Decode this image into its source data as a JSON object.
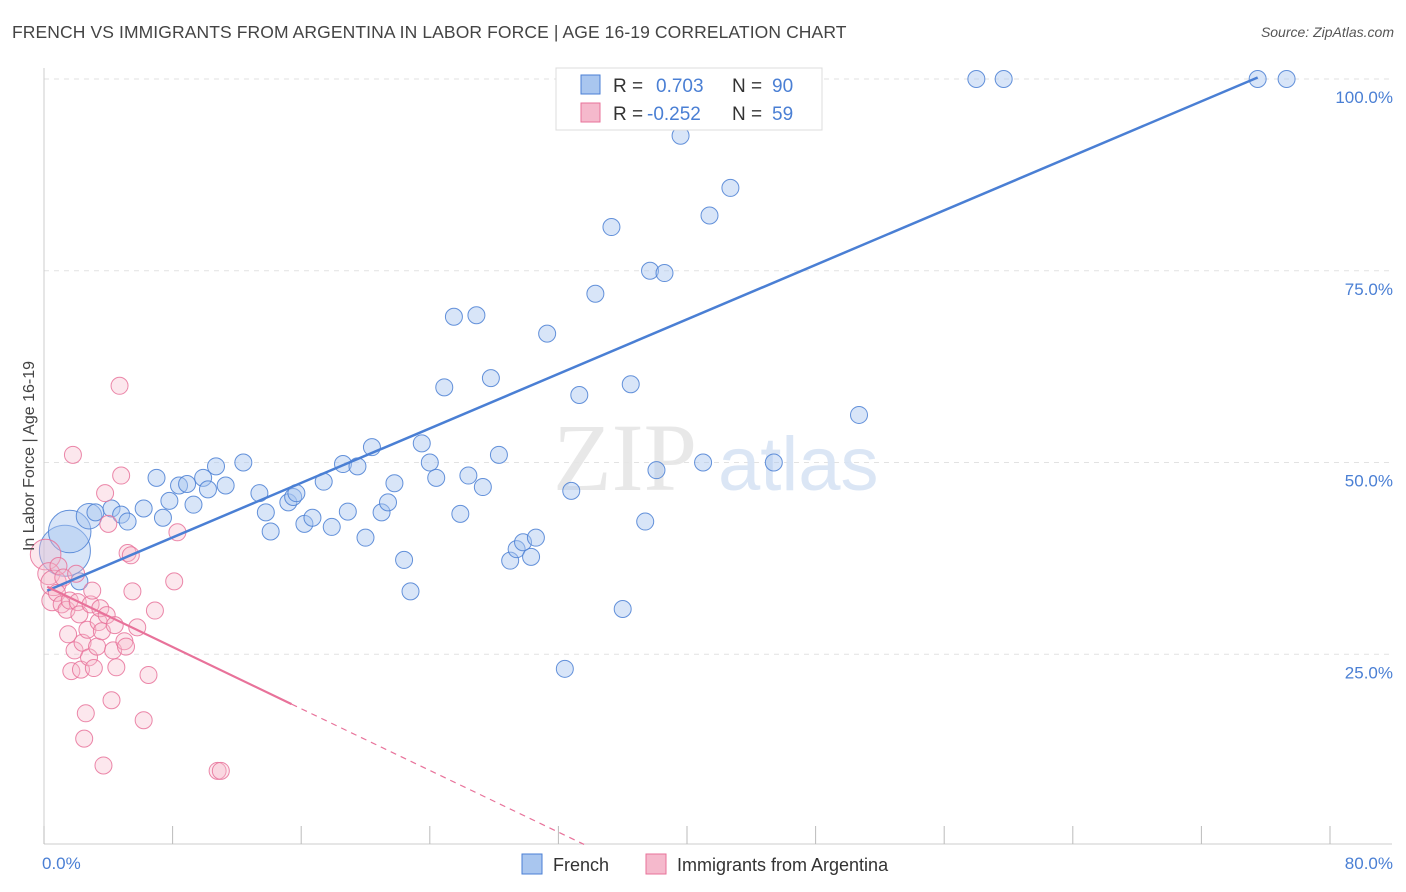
{
  "title": "FRENCH VS IMMIGRANTS FROM ARGENTINA IN LABOR FORCE | AGE 16-19 CORRELATION CHART",
  "source": "Source: ZipAtlas.com",
  "watermark": {
    "zip": "ZIP",
    "atlas": "atlas"
  },
  "chart_data": {
    "type": "scatter",
    "title": "FRENCH VS IMMIGRANTS FROM ARGENTINA IN LABOR FORCE | AGE 16-19 CORRELATION CHART",
    "xlabel": "",
    "ylabel": "In Labor Force | Age 16-19",
    "xlim": [
      0,
      80
    ],
    "ylim": [
      0,
      102
    ],
    "x_tick_labels": [
      "0.0%",
      "80.0%"
    ],
    "y_ticks": [
      25,
      50,
      75,
      100
    ],
    "y_tick_labels": [
      "25.0%",
      "50.0%",
      "75.0%",
      "100.0%"
    ],
    "grid": true,
    "legend_position": "top-center",
    "legend": [
      {
        "name": "French",
        "r_label": "R =",
        "r_value": "0.703",
        "n_label": "N =",
        "n_value": "90"
      },
      {
        "name": "Immigrants from Argentina",
        "r_label": "R =",
        "r_value": "-0.252",
        "n_label": "N =",
        "n_value": "59"
      }
    ],
    "colors": {
      "French": "#4a7fd4",
      "French_fill": "#a9c6ef",
      "Argentina": "#e8729a",
      "Argentina_fill": "#f5b9cc"
    },
    "series": [
      {
        "name": "French",
        "trend": {
          "x": [
            0.2,
            75.5
          ],
          "y": [
            33.3,
            100.2
          ]
        },
        "points": [
          [
            1.3,
            38.5,
            3
          ],
          [
            1.6,
            41.0,
            2.5
          ],
          [
            2.2,
            34.5,
            1
          ],
          [
            2.8,
            43.0,
            1.5
          ],
          [
            3.2,
            43.5,
            1
          ],
          [
            4.2,
            44.0,
            1
          ],
          [
            4.8,
            43.2,
            1
          ],
          [
            5.2,
            42.3,
            1
          ],
          [
            6.2,
            44.0,
            1
          ],
          [
            7.0,
            48.0,
            1
          ],
          [
            7.4,
            42.8,
            1
          ],
          [
            7.8,
            45.0,
            1
          ],
          [
            8.4,
            47.0,
            1
          ],
          [
            8.9,
            47.2,
            1
          ],
          [
            9.3,
            44.5,
            1
          ],
          [
            9.9,
            48.0,
            1
          ],
          [
            10.2,
            46.5,
            1
          ],
          [
            10.7,
            49.5,
            1
          ],
          [
            11.3,
            47.0,
            1
          ],
          [
            12.4,
            50.0,
            1
          ],
          [
            13.4,
            46.0,
            1
          ],
          [
            13.8,
            43.5,
            1
          ],
          [
            14.1,
            41.0,
            1
          ],
          [
            15.2,
            44.8,
            1
          ],
          [
            15.5,
            45.5,
            1
          ],
          [
            15.7,
            46.0,
            1
          ],
          [
            16.2,
            42.0,
            1
          ],
          [
            16.7,
            42.8,
            1
          ],
          [
            17.4,
            47.5,
            1
          ],
          [
            17.9,
            41.6,
            1
          ],
          [
            18.6,
            49.8,
            1
          ],
          [
            18.9,
            43.6,
            1
          ],
          [
            19.5,
            49.5,
            1
          ],
          [
            20.0,
            40.2,
            1
          ],
          [
            20.4,
            52.0,
            1
          ],
          [
            21.0,
            43.5,
            1
          ],
          [
            21.4,
            44.8,
            1
          ],
          [
            21.8,
            47.3,
            1
          ],
          [
            22.4,
            37.3,
            1
          ],
          [
            22.8,
            33.2,
            1
          ],
          [
            23.5,
            52.5,
            1
          ],
          [
            24.0,
            50.0,
            1
          ],
          [
            24.4,
            48.0,
            1
          ],
          [
            24.9,
            59.8,
            1
          ],
          [
            25.5,
            69.0,
            1
          ],
          [
            25.9,
            43.3,
            1
          ],
          [
            26.4,
            48.3,
            1
          ],
          [
            26.9,
            69.2,
            1
          ],
          [
            27.3,
            46.8,
            1
          ],
          [
            27.8,
            61.0,
            1
          ],
          [
            28.3,
            51.0,
            1
          ],
          [
            29.0,
            37.2,
            1
          ],
          [
            29.4,
            38.7,
            1
          ],
          [
            29.8,
            39.6,
            1
          ],
          [
            30.3,
            37.7,
            1
          ],
          [
            30.6,
            40.2,
            1
          ],
          [
            31.3,
            66.8,
            1
          ],
          [
            32.4,
            23.1,
            1
          ],
          [
            32.8,
            46.3,
            1
          ],
          [
            33.3,
            58.8,
            1
          ],
          [
            34.3,
            72.0,
            1
          ],
          [
            34.7,
            99.8,
            1
          ],
          [
            35.3,
            80.7,
            1
          ],
          [
            36.0,
            30.9,
            1
          ],
          [
            36.5,
            60.2,
            1
          ],
          [
            37.4,
            42.3,
            1
          ],
          [
            37.7,
            75.0,
            1
          ],
          [
            38.1,
            49.0,
            1
          ],
          [
            38.6,
            74.7,
            1
          ],
          [
            39.1,
            99.7,
            1
          ],
          [
            39.6,
            92.6,
            1
          ],
          [
            41.0,
            50.0,
            1
          ],
          [
            41.4,
            82.2,
            1
          ],
          [
            42.7,
            85.8,
            1
          ],
          [
            43.1,
            99.7,
            1
          ],
          [
            45.4,
            50.0,
            1
          ],
          [
            45.9,
            99.8,
            1
          ],
          [
            50.7,
            56.2,
            1
          ],
          [
            58.0,
            100.0,
            1
          ],
          [
            59.7,
            100.0,
            1
          ],
          [
            75.5,
            100.0,
            1
          ],
          [
            77.3,
            100.0,
            1
          ]
        ]
      },
      {
        "name": "Immigrants from Argentina",
        "trend_solid": {
          "x": [
            0.2,
            15.4
          ],
          "y": [
            33.8,
            18.5
          ]
        },
        "trend_dashed": {
          "x": [
            15.4,
            33.6
          ],
          "y": [
            18.5,
            0.2
          ]
        },
        "points": [
          [
            0.1,
            38.0,
            1.8
          ],
          [
            0.3,
            35.5,
            1.3
          ],
          [
            0.5,
            32.0,
            1.2
          ],
          [
            0.6,
            34.3,
            1.5
          ],
          [
            0.8,
            33.0,
            1
          ],
          [
            0.9,
            36.5,
            1
          ],
          [
            1.1,
            31.5,
            1
          ],
          [
            1.2,
            35.0,
            1
          ],
          [
            1.4,
            30.8,
            1
          ],
          [
            1.5,
            27.6,
            1
          ],
          [
            1.6,
            32.0,
            1
          ],
          [
            1.7,
            22.8,
            1
          ],
          [
            1.8,
            51.0,
            1
          ],
          [
            1.9,
            25.5,
            1
          ],
          [
            2.0,
            35.5,
            1
          ],
          [
            2.1,
            31.8,
            1
          ],
          [
            2.2,
            30.2,
            1
          ],
          [
            2.3,
            23.0,
            1
          ],
          [
            2.4,
            26.5,
            1
          ],
          [
            2.5,
            14.0,
            1
          ],
          [
            2.6,
            17.3,
            1
          ],
          [
            2.7,
            28.2,
            1
          ],
          [
            2.8,
            24.6,
            1
          ],
          [
            2.9,
            31.5,
            1
          ],
          [
            3.0,
            33.3,
            1
          ],
          [
            3.1,
            23.2,
            1
          ],
          [
            3.3,
            26.0,
            1
          ],
          [
            3.4,
            29.2,
            1
          ],
          [
            3.5,
            31.0,
            1
          ],
          [
            3.6,
            28.0,
            1
          ],
          [
            3.7,
            10.5,
            1
          ],
          [
            3.8,
            46.0,
            1
          ],
          [
            3.9,
            30.1,
            1
          ],
          [
            4.0,
            42.0,
            1
          ],
          [
            4.2,
            19.0,
            1
          ],
          [
            4.3,
            25.5,
            1
          ],
          [
            4.4,
            28.8,
            1
          ],
          [
            4.5,
            23.3,
            1
          ],
          [
            4.7,
            60.0,
            1
          ],
          [
            4.8,
            48.3,
            1
          ],
          [
            5.0,
            26.7,
            1
          ],
          [
            5.1,
            26.0,
            1
          ],
          [
            5.2,
            38.2,
            1
          ],
          [
            5.4,
            37.9,
            1
          ],
          [
            5.5,
            33.2,
            1
          ],
          [
            5.8,
            28.5,
            1
          ],
          [
            6.2,
            16.4,
            1
          ],
          [
            6.5,
            22.3,
            1
          ],
          [
            6.9,
            30.7,
            1
          ],
          [
            8.1,
            34.5,
            1
          ],
          [
            8.3,
            40.9,
            1
          ],
          [
            10.8,
            9.8,
            1
          ],
          [
            11.0,
            9.8,
            1
          ]
        ]
      }
    ]
  }
}
